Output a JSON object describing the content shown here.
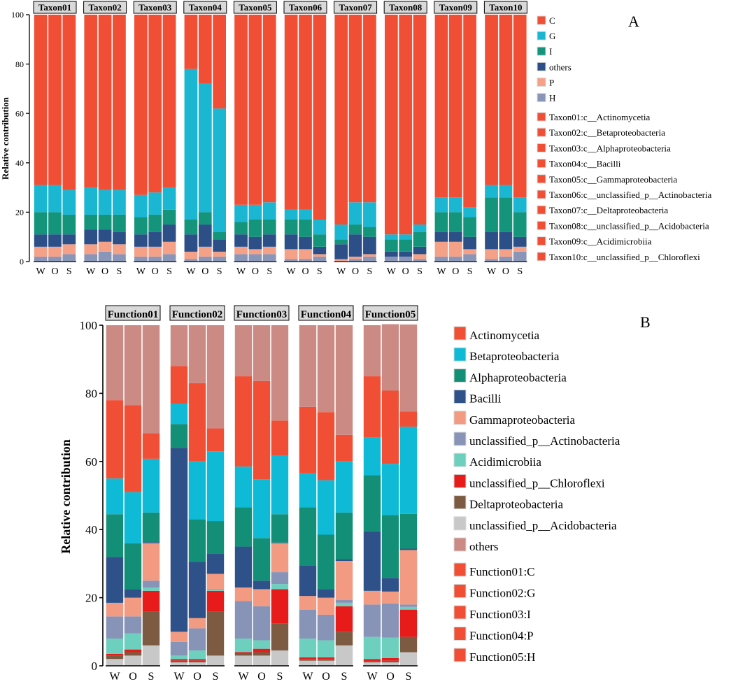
{
  "colors": {
    "C": "#f04f36",
    "G": "#1ab6d2",
    "I": "#14957b",
    "others_a": "#2d4f88",
    "P": "#f5a187",
    "H": "#8a96b8",
    "Actinomycetia": "#f04f36",
    "Betaproteobacteria": "#0ebad6",
    "Alphaproteobacteria": "#148f77",
    "Bacilli": "#2e5189",
    "Gammaproteobacteria": "#f29a82",
    "unclassified_p__Actinobacteria": "#8893b8",
    "Acidimicrobiia": "#6dcfbe",
    "unclassified_p__Chloroflexi": "#e81b1b",
    "Deltaproteobacteria": "#7d5a42",
    "unclassified_p__Acidobacteria": "#c8c8c8",
    "others_b": "#cc8a84",
    "facet_fill": "#d9d9d9"
  },
  "chart_data": [
    {
      "type": "bar",
      "stacked": true,
      "panel_label": "A",
      "ylabel": "Relative contribution",
      "ylim": [
        0,
        100
      ],
      "yticks": [
        0,
        20,
        40,
        60,
        80,
        100
      ],
      "categories": [
        "W",
        "O",
        "S"
      ],
      "stack_order": [
        "H",
        "P",
        "others",
        "I",
        "G",
        "C"
      ],
      "facets": [
        {
          "name": "Taxon01",
          "values": {
            "H": [
              2,
              2,
              3
            ],
            "P": [
              4,
              4,
              4
            ],
            "others": [
              5,
              5,
              4
            ],
            "I": [
              9,
              9,
              8
            ],
            "G": [
              11,
              11,
              10
            ],
            "C": [
              69,
              69,
              71
            ]
          }
        },
        {
          "name": "Taxon02",
          "values": {
            "H": [
              3,
              4,
              3
            ],
            "P": [
              4,
              4,
              4
            ],
            "others": [
              6,
              5,
              5
            ],
            "I": [
              6,
              6,
              7
            ],
            "G": [
              11,
              10,
              10
            ],
            "C": [
              70,
              71,
              71
            ]
          }
        },
        {
          "name": "Taxon03",
          "values": {
            "H": [
              2,
              2,
              3
            ],
            "P": [
              4,
              4,
              5
            ],
            "others": [
              5,
              6,
              7
            ],
            "I": [
              7,
              7,
              6
            ],
            "G": [
              9,
              9,
              9
            ],
            "C": [
              73,
              72,
              70
            ]
          }
        },
        {
          "name": "Taxon04",
          "values": {
            "H": [
              1,
              2,
              2
            ],
            "P": [
              3,
              4,
              2
            ],
            "others": [
              7,
              9,
              5
            ],
            "I": [
              6,
              5,
              3
            ],
            "G": [
              61,
              52,
              50
            ],
            "C": [
              22,
              28,
              38
            ]
          }
        },
        {
          "name": "Taxon05",
          "values": {
            "H": [
              3,
              3,
              3
            ],
            "P": [
              3,
              2,
              3
            ],
            "others": [
              5,
              5,
              5
            ],
            "I": [
              5,
              7,
              6
            ],
            "G": [
              7,
              6,
              7
            ],
            "C": [
              77,
              77,
              76
            ]
          }
        },
        {
          "name": "Taxon06",
          "values": {
            "H": [
              1,
              1,
              2
            ],
            "P": [
              4,
              4,
              1
            ],
            "others": [
              6,
              5,
              3
            ],
            "I": [
              6,
              7,
              5
            ],
            "G": [
              4,
              4,
              6
            ],
            "C": [
              79,
              79,
              83
            ]
          }
        },
        {
          "name": "Taxon07",
          "values": {
            "H": [
              0,
              1,
              2
            ],
            "P": [
              1,
              1,
              1
            ],
            "others": [
              6,
              9,
              7
            ],
            "I": [
              2,
              4,
              4
            ],
            "G": [
              6,
              9,
              10
            ],
            "C": [
              85,
              76,
              76
            ]
          }
        },
        {
          "name": "Taxon08",
          "values": {
            "H": [
              2,
              2,
              1
            ],
            "P": [
              0,
              0,
              2
            ],
            "others": [
              2,
              2,
              3
            ],
            "I": [
              5,
              5,
              6
            ],
            "G": [
              2,
              2,
              3
            ],
            "C": [
              89,
              89,
              85
            ]
          }
        },
        {
          "name": "Taxon09",
          "values": {
            "H": [
              2,
              2,
              3
            ],
            "P": [
              6,
              6,
              2
            ],
            "others": [
              4,
              4,
              5
            ],
            "I": [
              8,
              8,
              8
            ],
            "G": [
              6,
              6,
              4
            ],
            "C": [
              74,
              74,
              78
            ]
          }
        },
        {
          "name": "Taxon10",
          "values": {
            "H": [
              1,
              2,
              4
            ],
            "P": [
              4,
              3,
              2
            ],
            "others": [
              7,
              7,
              4
            ],
            "I": [
              14,
              14,
              10
            ],
            "G": [
              5,
              5,
              6
            ],
            "C": [
              69,
              69,
              74
            ]
          }
        }
      ],
      "legend": {
        "groups": [
          "C",
          "G",
          "I",
          "others",
          "P",
          "H"
        ],
        "taxa": [
          "Taxon01:c__Actinomycetia",
          "Taxon02:c__Betaproteobacteria",
          "Taxon03:c__Alphaproteobacteria",
          "Taxon04:c__Bacilli",
          "Taxon05:c__Gammaproteobacteria",
          "Taxon06:c__unclassified_p__Actinobacteria",
          "Taxon07:c__Deltaproteobacteria",
          "Taxon08:c__unclassified_p__Acidobacteria",
          "Taxon09:c__Acidimicrobiia",
          "Taxon10:c__unclassified_p__Chloroflexi"
        ]
      }
    },
    {
      "type": "bar",
      "stacked": true,
      "panel_label": "B",
      "ylabel": "Relative contribution",
      "ylim": [
        0,
        100
      ],
      "yticks": [
        0,
        20,
        40,
        60,
        80,
        100
      ],
      "categories": [
        "W",
        "O",
        "S"
      ],
      "stack_order": [
        "unclassified_p__Acidobacteria",
        "Deltaproteobacteria",
        "unclassified_p__Chloroflexi",
        "Acidimicrobiia",
        "unclassified_p__Actinobacteria",
        "Gammaproteobacteria",
        "Bacilli",
        "Alphaproteobacteria",
        "Betaproteobacteria",
        "Actinomycetia",
        "others"
      ],
      "facets": [
        {
          "name": "Function01",
          "values": {
            "unclassified_p__Acidobacteria": [
              2,
              3,
              6
            ],
            "Deltaproteobacteria": [
              1,
              1,
              10
            ],
            "unclassified_p__Chloroflexi": [
              0.5,
              0.8,
              6
            ],
            "Acidimicrobiia": [
              4.5,
              4.7,
              1
            ],
            "unclassified_p__Actinobacteria": [
              6.5,
              5,
              2
            ],
            "Gammaproteobacteria": [
              4,
              5.5,
              11
            ],
            "Bacilli": [
              13.5,
              2.5,
              0.3
            ],
            "Alphaproteobacteria": [
              12.5,
              13.5,
              8.7
            ],
            "Betaproteobacteria": [
              10.5,
              15,
              15.8
            ],
            "Actinomycetia": [
              23,
              25.5,
              7.5
            ],
            "others": [
              22,
              23.5,
              31.7
            ]
          }
        },
        {
          "name": "Function02",
          "values": {
            "unclassified_p__Acidobacteria": [
              1,
              1,
              3
            ],
            "Deltaproteobacteria": [
              0.5,
              0.5,
              13
            ],
            "unclassified_p__Chloroflexi": [
              0.5,
              0.5,
              6
            ],
            "Acidimicrobiia": [
              1,
              2.5,
              0.3
            ],
            "unclassified_p__Actinobacteria": [
              4,
              6.5,
              0.2
            ],
            "Gammaproteobacteria": [
              3,
              3,
              4.5
            ],
            "Bacilli": [
              54,
              16.5,
              6
            ],
            "Alphaproteobacteria": [
              7,
              12.5,
              9.5
            ],
            "Betaproteobacteria": [
              6,
              17,
              20.5
            ],
            "Actinomycetia": [
              11,
              23,
              6.7
            ],
            "others": [
              12,
              17,
              30.3
            ]
          }
        },
        {
          "name": "Function03",
          "values": {
            "unclassified_p__Acidobacteria": [
              3,
              3,
              4.5
            ],
            "Deltaproteobacteria": [
              0.5,
              1,
              8
            ],
            "unclassified_p__Chloroflexi": [
              0.5,
              1,
              10
            ],
            "Acidimicrobiia": [
              4,
              2.5,
              1.5
            ],
            "unclassified_p__Actinobacteria": [
              11,
              10,
              3.5
            ],
            "Gammaproteobacteria": [
              4,
              5,
              8.5
            ],
            "Bacilli": [
              12,
              2.5,
              0.2
            ],
            "Alphaproteobacteria": [
              11.5,
              12.5,
              8.3
            ],
            "Betaproteobacteria": [
              12,
              17.3,
              17.3
            ],
            "Actinomycetia": [
              26.5,
              28.8,
              10.2
            ],
            "others": [
              15,
              16.4,
              28
            ]
          }
        },
        {
          "name": "Function04",
          "values": {
            "unclassified_p__Acidobacteria": [
              1.5,
              1.5,
              6
            ],
            "Deltaproteobacteria": [
              0.5,
              0.5,
              4
            ],
            "unclassified_p__Chloroflexi": [
              0.5,
              0.5,
              7.5
            ],
            "Acidimicrobiia": [
              5.5,
              5,
              1
            ],
            "unclassified_p__Actinobacteria": [
              8.5,
              7.5,
              0.8
            ],
            "Gammaproteobacteria": [
              4,
              5,
              11.5
            ],
            "Bacilli": [
              9,
              2.5,
              0.5
            ],
            "Alphaproteobacteria": [
              17,
              16,
              13.7
            ],
            "Betaproteobacteria": [
              10,
              16,
              15
            ],
            "Actinomycetia": [
              19.5,
              20,
              7.8
            ],
            "others": [
              24,
              25.5,
              32.2
            ]
          }
        },
        {
          "name": "Function05",
          "values": {
            "unclassified_p__Acidobacteria": [
              1,
              1,
              4
            ],
            "Deltaproteobacteria": [
              0.3,
              0.5,
              4.5
            ],
            "unclassified_p__Chloroflexi": [
              0.7,
              0.8,
              8
            ],
            "Acidimicrobiia": [
              6.5,
              6,
              0.8
            ],
            "unclassified_p__Actinobacteria": [
              9.5,
              10,
              0.7
            ],
            "Gammaproteobacteria": [
              4,
              3.5,
              16
            ],
            "Bacilli": [
              17.5,
              4,
              0.4
            ],
            "Alphaproteobacteria": [
              16.5,
              18.5,
              10.2
            ],
            "Betaproteobacteria": [
              11,
              15,
              25.6
            ],
            "Actinomycetia": [
              18,
              21.5,
              4.5
            ],
            "others": [
              15,
              19.5,
              25.5
            ]
          }
        }
      ],
      "legend": {
        "taxa": [
          "Actinomycetia",
          "Betaproteobacteria",
          "Alphaproteobacteria",
          "Bacilli",
          "Gammaproteobacteria",
          "unclassified_p__Actinobacteria",
          "Acidimicrobiia",
          "unclassified_p__Chloroflexi",
          "Deltaproteobacteria",
          "unclassified_p__Acidobacteria",
          "others"
        ],
        "functions": [
          "Function01:C",
          "Function02:G",
          "Function03:I",
          "Function04:P",
          "Function05:H"
        ]
      }
    }
  ]
}
